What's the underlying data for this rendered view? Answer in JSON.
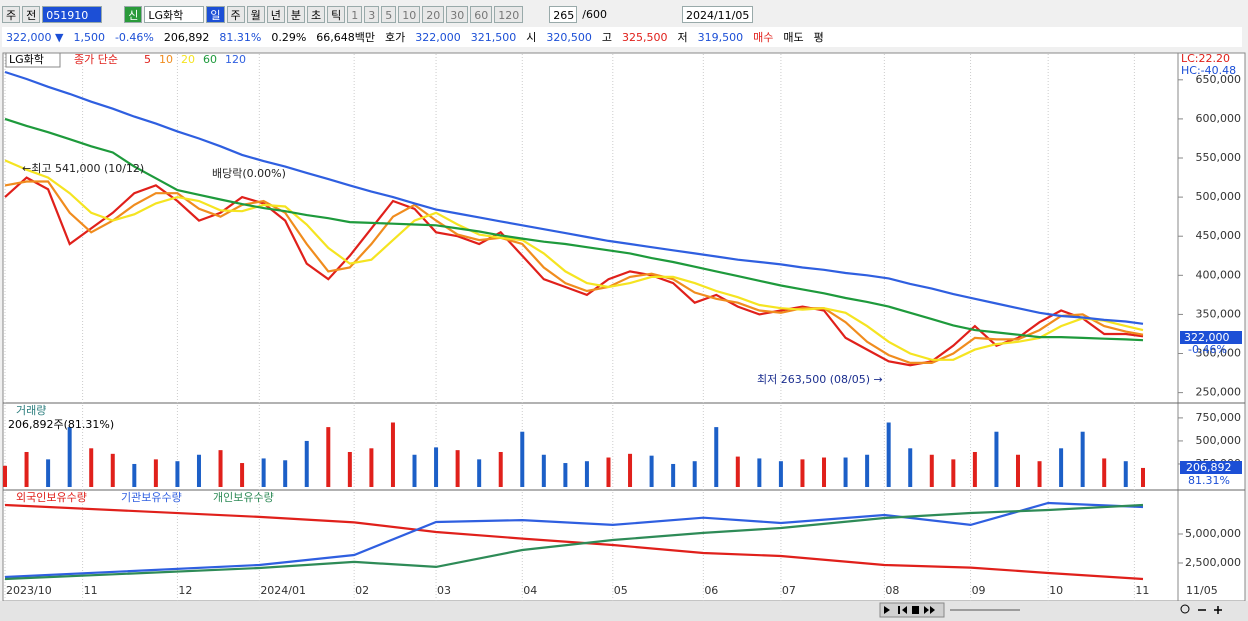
{
  "toolbar": {
    "period_unit": "주",
    "prev": "전",
    "code": "051910",
    "badge": "신",
    "name": "LG화학",
    "periods": [
      "일",
      "주",
      "월",
      "년",
      "분",
      "초",
      "틱"
    ],
    "intervals": [
      "1",
      "3",
      "5",
      "10",
      "20",
      "30",
      "60",
      "120"
    ],
    "count": "265",
    "count_max": "/600",
    "date": "2024/11/05"
  },
  "quote_bar": [
    {
      "text": "322,000 ▼",
      "color": "#1c4fd6"
    },
    {
      "text": "1,500",
      "color": "#1c4fd6"
    },
    {
      "text": "-0.46%",
      "color": "#1c4fd6"
    },
    {
      "text": "206,892",
      "color": "#000"
    },
    {
      "text": "81.31%",
      "color": "#1c4fd6"
    },
    {
      "text": "0.29%",
      "color": "#000"
    },
    {
      "text": "66,648백만",
      "color": "#000"
    },
    {
      "text": "호가",
      "color": "#000"
    },
    {
      "text": "322,000",
      "color": "#1c4fd6"
    },
    {
      "text": "321,500",
      "color": "#1c4fd6"
    },
    {
      "text": "시",
      "color": "#000"
    },
    {
      "text": "320,500",
      "color": "#1c4fd6"
    },
    {
      "text": "고",
      "color": "#000"
    },
    {
      "text": "325,500",
      "color": "#e0201b"
    },
    {
      "text": "저",
      "color": "#000"
    },
    {
      "text": "319,500",
      "color": "#1c4fd6"
    },
    {
      "text": "매수",
      "color": "#e0201b"
    },
    {
      "text": "매도",
      "color": "#000"
    },
    {
      "text": "평",
      "color": "#000"
    }
  ],
  "chart_data": [
    {
      "type": "line",
      "legend_name": "LG화학",
      "legend_label": "종가 단순",
      "xlim": [
        0,
        264
      ],
      "x": [
        0,
        5,
        10,
        15,
        20,
        25,
        30,
        35,
        40,
        45,
        50,
        55,
        60,
        65,
        70,
        75,
        80,
        85,
        90,
        95,
        100,
        105,
        110,
        115,
        120,
        125,
        130,
        135,
        140,
        145,
        150,
        155,
        160,
        165,
        170,
        175,
        180,
        185,
        190,
        195,
        200,
        205,
        210,
        215,
        220,
        225,
        230,
        235,
        240,
        245,
        250,
        255,
        260,
        264
      ],
      "ylim": [
        238000,
        683000
      ],
      "yticks": [
        {
          "value": 250000,
          "label": "250,000"
        },
        {
          "value": 300000,
          "label": "300,000"
        },
        {
          "value": 350000,
          "label": "350,000"
        },
        {
          "value": 400000,
          "label": "400,000"
        },
        {
          "value": 450000,
          "label": "450,000"
        },
        {
          "value": 500000,
          "label": "500,000"
        },
        {
          "value": 550000,
          "label": "550,000"
        },
        {
          "value": 600000,
          "label": "600,000"
        },
        {
          "value": 650000,
          "label": "650,000"
        }
      ],
      "xticks": [
        {
          "value": 0,
          "label": "2023/10"
        },
        {
          "value": 18,
          "label": "11"
        },
        {
          "value": 40,
          "label": "12"
        },
        {
          "value": 59,
          "label": "2024/01"
        },
        {
          "value": 81,
          "label": "02"
        },
        {
          "value": 100,
          "label": "03"
        },
        {
          "value": 120,
          "label": "04"
        },
        {
          "value": 141,
          "label": "05"
        },
        {
          "value": 162,
          "label": "06"
        },
        {
          "value": 180,
          "label": "07"
        },
        {
          "value": 204,
          "label": "08"
        },
        {
          "value": 224,
          "label": "09"
        },
        {
          "value": 242,
          "label": "10"
        },
        {
          "value": 262,
          "label": "11"
        }
      ],
      "x_end_label": "11/05",
      "series": [
        {
          "name": "5",
          "color": "#e0201b",
          "values": [
            500000,
            525000,
            510000,
            440000,
            460000,
            480000,
            505000,
            515000,
            495000,
            470000,
            480000,
            500000,
            492000,
            470000,
            415000,
            395000,
            425000,
            460000,
            495000,
            485000,
            455000,
            450000,
            440000,
            455000,
            425000,
            395000,
            385000,
            375000,
            395000,
            405000,
            400000,
            390000,
            365000,
            375000,
            360000,
            350000,
            355000,
            360000,
            355000,
            320000,
            305000,
            290000,
            285000,
            290000,
            310000,
            335000,
            310000,
            320000,
            340000,
            355000,
            345000,
            325000,
            325000,
            322000
          ]
        },
        {
          "name": "10",
          "color": "#f08c1e",
          "values": [
            515000,
            520000,
            520000,
            480000,
            455000,
            470000,
            490000,
            505000,
            505000,
            485000,
            475000,
            490000,
            495000,
            480000,
            440000,
            405000,
            410000,
            440000,
            475000,
            490000,
            470000,
            452000,
            445000,
            448000,
            440000,
            410000,
            390000,
            380000,
            385000,
            398000,
            402000,
            395000,
            378000,
            370000,
            365000,
            355000,
            352000,
            358000,
            358000,
            340000,
            315000,
            298000,
            288000,
            288000,
            300000,
            320000,
            318000,
            318000,
            330000,
            348000,
            350000,
            335000,
            328000,
            324000
          ]
        },
        {
          "name": "20",
          "color": "#f5e421",
          "values": [
            547000,
            535000,
            525000,
            505000,
            480000,
            470000,
            478000,
            492000,
            500000,
            495000,
            483000,
            482000,
            490000,
            488000,
            465000,
            435000,
            415000,
            420000,
            445000,
            470000,
            480000,
            465000,
            452000,
            448000,
            445000,
            428000,
            405000,
            390000,
            385000,
            390000,
            398000,
            398000,
            390000,
            380000,
            372000,
            362000,
            358000,
            356000,
            358000,
            352000,
            335000,
            315000,
            300000,
            292000,
            292000,
            305000,
            312000,
            315000,
            320000,
            335000,
            345000,
            342000,
            335000,
            330000
          ]
        },
        {
          "name": "60",
          "color": "#1e9a3c",
          "values": [
            600000,
            591000,
            583000,
            574000,
            565000,
            557000,
            539000,
            524000,
            509000,
            503000,
            497000,
            491000,
            486000,
            482000,
            477000,
            473000,
            468000,
            467000,
            466000,
            465000,
            464000,
            460000,
            456000,
            451000,
            447000,
            443000,
            440000,
            436000,
            432000,
            428000,
            422000,
            417000,
            411000,
            405000,
            399000,
            393000,
            387000,
            382000,
            377000,
            371000,
            366000,
            360000,
            352000,
            344000,
            336000,
            330000,
            327000,
            324000,
            321000,
            321000,
            320000,
            319000,
            318000,
            317000
          ]
        },
        {
          "name": "120",
          "color": "#2f5fe0",
          "values": [
            660000,
            651000,
            641000,
            632000,
            622000,
            613000,
            603000,
            594000,
            584000,
            575000,
            565000,
            554000,
            546000,
            539000,
            531000,
            523000,
            515000,
            507000,
            500000,
            492000,
            484000,
            479000,
            474000,
            469000,
            464000,
            459000,
            454000,
            449000,
            444000,
            440000,
            436000,
            432000,
            428000,
            424000,
            420000,
            417000,
            414000,
            410000,
            407000,
            403000,
            400000,
            396000,
            389000,
            383000,
            376000,
            370000,
            364000,
            358000,
            352000,
            348000,
            346000,
            343000,
            341000,
            338000
          ]
        }
      ],
      "annotations": [
        "←최고 541,000 (10/12)",
        "배당락(0.00%)",
        "최저 263,500 (08/05) →"
      ],
      "right_labels": [
        "LC:22.20",
        "HC:-40.48"
      ],
      "price_tag": "322,000",
      "change_tag": "-0.46%"
    },
    {
      "type": "bar",
      "title": "거래량",
      "subtitle": "206,892주(81.31%)",
      "xlim": [
        0,
        264
      ],
      "x": [
        0,
        5,
        10,
        15,
        20,
        25,
        30,
        35,
        40,
        45,
        50,
        55,
        60,
        65,
        70,
        75,
        80,
        85,
        90,
        95,
        100,
        105,
        110,
        115,
        120,
        125,
        130,
        135,
        140,
        145,
        150,
        155,
        160,
        165,
        170,
        175,
        180,
        185,
        190,
        195,
        200,
        205,
        210,
        215,
        220,
        225,
        230,
        235,
        240,
        245,
        250,
        255,
        260,
        264
      ],
      "values": [
        230000,
        380000,
        300000,
        650000,
        420000,
        360000,
        250000,
        300000,
        280000,
        350000,
        400000,
        260000,
        310000,
        290000,
        500000,
        650000,
        380000,
        420000,
        700000,
        350000,
        430000,
        400000,
        300000,
        380000,
        600000,
        350000,
        260000,
        280000,
        320000,
        360000,
        340000,
        250000,
        280000,
        650000,
        330000,
        310000,
        280000,
        300000,
        320000,
        320000,
        350000,
        700000,
        420000,
        350000,
        300000,
        380000,
        600000,
        350000,
        280000,
        420000,
        600000,
        310000,
        280000,
        206892
      ],
      "colors": [
        "#e0201b",
        "#e0201b",
        "#1c5fc7",
        "#1c5fc7",
        "#e0201b",
        "#e0201b",
        "#1c5fc7",
        "#e0201b",
        "#1c5fc7",
        "#1c5fc7",
        "#e0201b",
        "#e0201b",
        "#1c5fc7",
        "#1c5fc7",
        "#1c5fc7",
        "#e0201b",
        "#e0201b",
        "#e0201b",
        "#e0201b",
        "#1c5fc7",
        "#1c5fc7",
        "#e0201b",
        "#1c5fc7",
        "#e0201b",
        "#1c5fc7",
        "#1c5fc7",
        "#1c5fc7",
        "#1c5fc7",
        "#e0201b",
        "#e0201b",
        "#1c5fc7",
        "#1c5fc7",
        "#1c5fc7",
        "#1c5fc7",
        "#e0201b",
        "#1c5fc7",
        "#1c5fc7",
        "#e0201b",
        "#e0201b",
        "#1c5fc7",
        "#1c5fc7",
        "#1c5fc7",
        "#1c5fc7",
        "#e0201b",
        "#e0201b",
        "#e0201b",
        "#1c5fc7",
        "#e0201b",
        "#e0201b",
        "#1c5fc7",
        "#1c5fc7",
        "#e0201b",
        "#1c5fc7",
        "#e0201b"
      ],
      "ylim": [
        0,
        890000
      ],
      "yticks": [
        {
          "value": 250000,
          "label": "250,000"
        },
        {
          "value": 500000,
          "label": "500,000"
        },
        {
          "value": 750000,
          "label": "750,000"
        }
      ],
      "value_tag": "206,892",
      "pct_tag": "81.31%"
    },
    {
      "type": "line",
      "xlim": [
        0,
        264
      ],
      "x": [
        0,
        59,
        81,
        100,
        120,
        141,
        162,
        180,
        204,
        224,
        242,
        264
      ],
      "ylim": [
        860000,
        8620000
      ],
      "yticks": [
        {
          "value": 2500000,
          "label": "2,500,000"
        },
        {
          "value": 5000000,
          "label": "5,000,000"
        }
      ],
      "series": [
        {
          "name": "외국인보유수량",
          "color": "#e0201b",
          "values": [
            7500000,
            6470000,
            6000000,
            5170000,
            4600000,
            4050000,
            3360000,
            3100000,
            2330000,
            2100000,
            1640000,
            1120000
          ]
        },
        {
          "name": "기관보유수량",
          "color": "#2f5fe0",
          "values": [
            1290000,
            2330000,
            3190000,
            6030000,
            6200000,
            5780000,
            6400000,
            5950000,
            6640000,
            5780000,
            7670000,
            7330000
          ]
        },
        {
          "name": "개인보유수량",
          "color": "#2e8b57",
          "values": [
            1120000,
            2070000,
            2590000,
            2160000,
            3620000,
            4480000,
            5090000,
            5520000,
            6380000,
            6810000,
            7070000,
            7500000
          ]
        }
      ]
    }
  ]
}
